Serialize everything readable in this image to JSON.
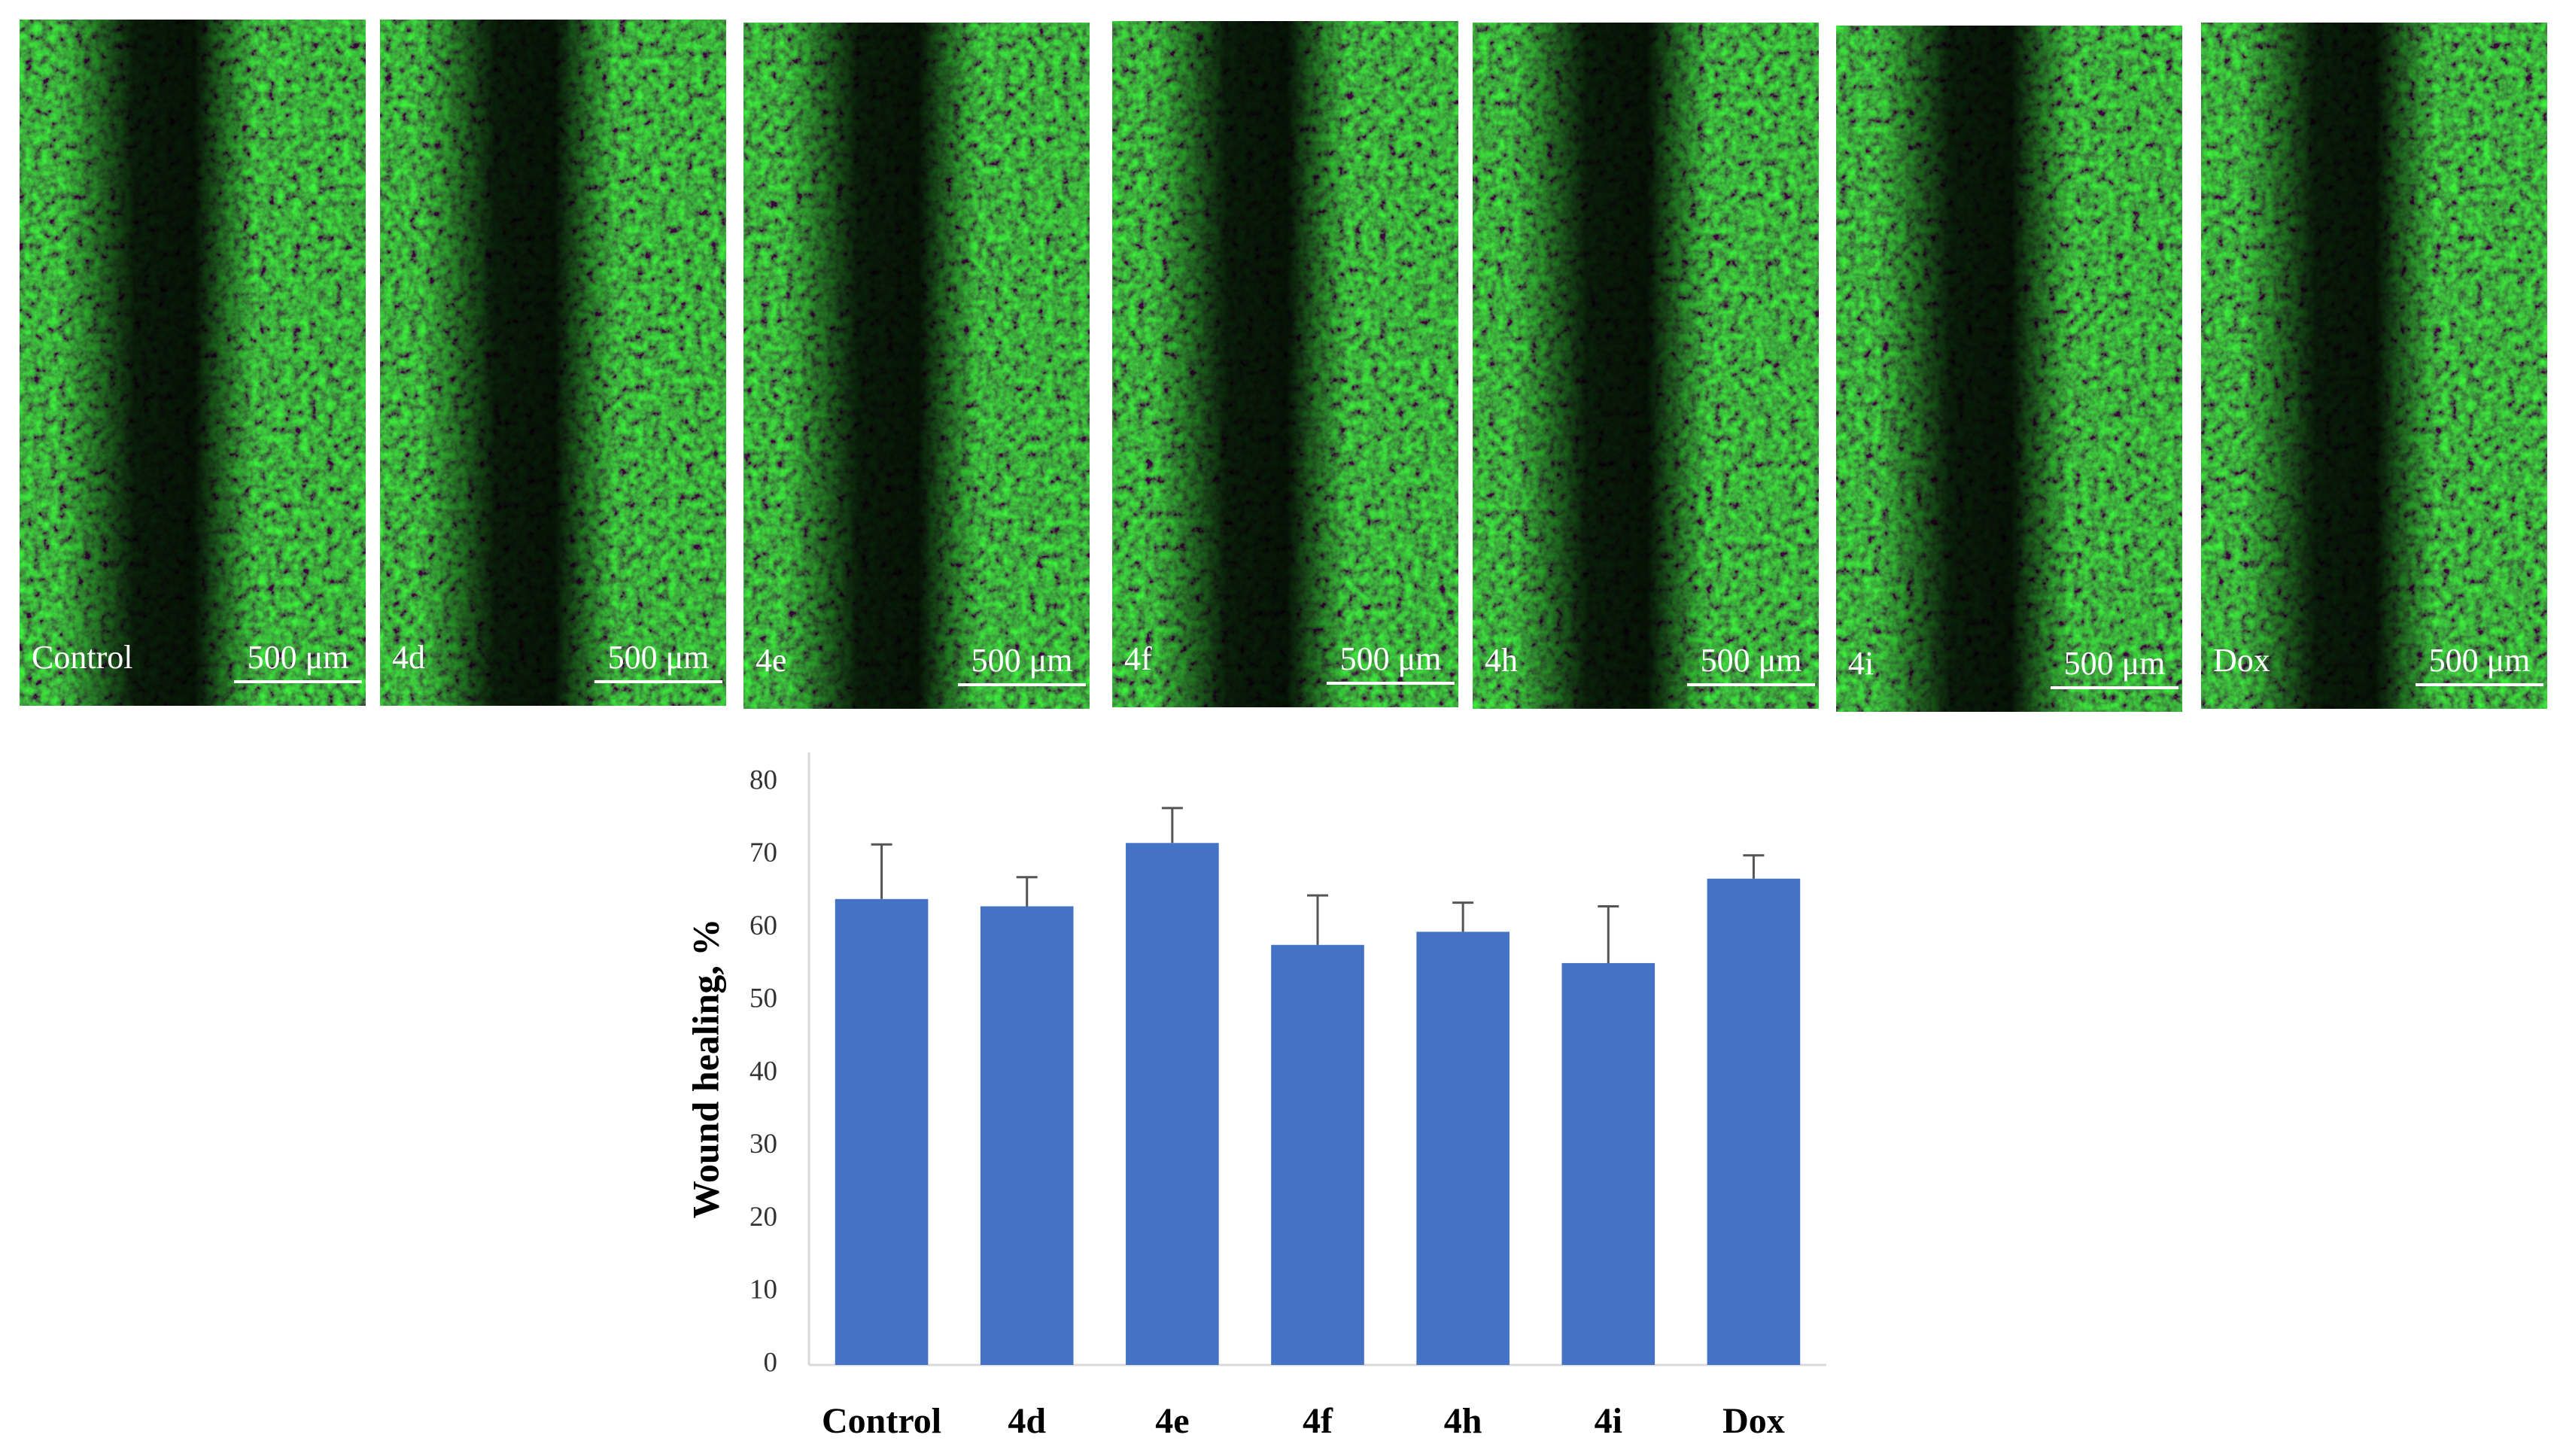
{
  "panels": [
    {
      "label": "Control",
      "scale_bar": "500 μm"
    },
    {
      "label": "4d",
      "scale_bar": "500 μm"
    },
    {
      "label": "4e",
      "scale_bar": "500 μm"
    },
    {
      "label": "4f",
      "scale_bar": "500 μm"
    },
    {
      "label": "4h",
      "scale_bar": "500 μm"
    },
    {
      "label": "4i",
      "scale_bar": "500 μm"
    },
    {
      "label": "Dox",
      "scale_bar": "500 μm"
    }
  ],
  "chart_data": {
    "type": "bar",
    "y_label": "Wound healing, %",
    "categories": [
      "Control",
      "4d",
      "4e",
      "4f",
      "4h",
      "4i",
      "Dox"
    ],
    "values": [
      64,
      63,
      71.7,
      57.7,
      59.5,
      55.2,
      66.8
    ],
    "errors": [
      7.5,
      4,
      4.8,
      6.8,
      4,
      7.8,
      3.2
    ],
    "color": "#4472c4",
    "ylim": [
      0,
      80
    ],
    "yticks": [
      0,
      10,
      20,
      30,
      40,
      50,
      60,
      70,
      80
    ],
    "grid": false
  }
}
